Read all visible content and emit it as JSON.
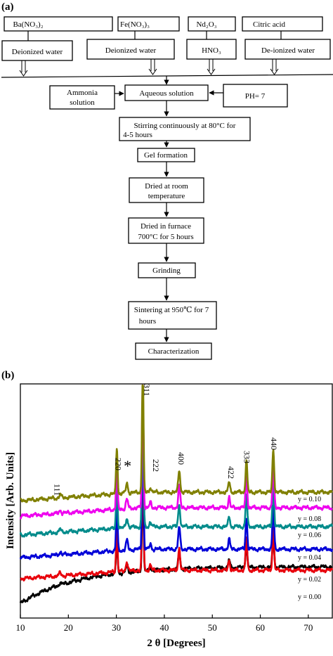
{
  "panel_a": {
    "label": "(a)",
    "boxes": {
      "bano3": "Ba(NO₃)₂",
      "feno3": "Fe(NO₃)₃",
      "nd2o3": "Nd₂O₃",
      "citric": "Citric acid",
      "dw1": "Deionized water",
      "dw2": "Deionized water",
      "hno3": "HNO₃",
      "dw3": "De-ionized water",
      "ammonia_l1": "Ammonia",
      "ammonia_l2": "solution",
      "aqueous": "Aqueous solution",
      "ph": "PH= 7",
      "stir_l1": "Stirring continuously at 80°C for",
      "stir_l2": "4-5 hours",
      "gel": "Gel formation",
      "dried_l1": "Dried at room",
      "dried_l2": "temperature",
      "furnace_l1": "Dried in furnace",
      "furnace_l2": "700°C for 5 hours",
      "grinding": "Grinding",
      "sinter_l1": "Sintering at 950℃  for 7",
      "sinter_l2": "hours",
      "char": "Characterization"
    }
  },
  "panel_b": {
    "label": "(b)",
    "chart_data": {
      "type": "line",
      "xlabel": "2 θ [Degrees]",
      "ylabel": "Intensity [Arb. Units]",
      "xlim": [
        10,
        75
      ],
      "xticks": [
        10,
        20,
        30,
        40,
        50,
        60,
        70
      ],
      "y_ticks_shown": false,
      "peaks": [
        {
          "label": "111",
          "x": 18.3
        },
        {
          "label": "220",
          "x": 30.1
        },
        {
          "label": "*",
          "x": 32.2
        },
        {
          "label": "311",
          "x": 35.5
        },
        {
          "label": "222",
          "x": 37.1
        },
        {
          "label": "400",
          "x": 43.1
        },
        {
          "label": "422",
          "x": 53.5
        },
        {
          "label": "333",
          "x": 57.1
        },
        {
          "label": "440",
          "x": 62.7
        }
      ],
      "series": [
        {
          "name": "y = 0.00",
          "color": "#000000"
        },
        {
          "name": "y = 0.02",
          "color": "#e8000b"
        },
        {
          "name": "y = 0.04",
          "color": "#0000d8"
        },
        {
          "name": "y = 0.06",
          "color": "#008b8b"
        },
        {
          "name": "y = 0.08",
          "color": "#ee00ee"
        },
        {
          "name": "y = 0.10",
          "color": "#808000"
        }
      ]
    }
  }
}
